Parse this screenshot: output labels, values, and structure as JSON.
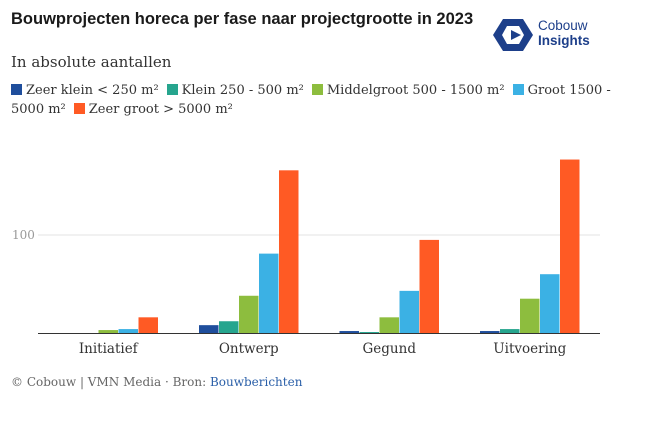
{
  "header": {
    "title": "Bouwprojecten horeca per fase naar projectgrootte in 2023",
    "subtitle": "In absolute aantallen"
  },
  "logo": {
    "line1": "Cobouw",
    "line2": "Insights",
    "color": "#1d3f8a"
  },
  "footer": {
    "credit": "© Cobouw | VMN Media · Bron: ",
    "source": "Bouwberichten"
  },
  "chart_data": {
    "type": "bar",
    "title": "Bouwprojecten horeca per fase naar projectgrootte in 2023",
    "subtitle": "In absolute aantallen",
    "categories": [
      "Initiatief",
      "Ontwerp",
      "Gegund",
      "Uitvoering"
    ],
    "series": [
      {
        "name": "Zeer klein < 250 m²",
        "color": "#1f4e9c",
        "values": [
          0,
          8,
          2,
          2
        ]
      },
      {
        "name": "Klein 250 - 500 m²",
        "color": "#26a58e",
        "values": [
          0,
          12,
          1,
          4
        ]
      },
      {
        "name": "Middelgroot 500 - 1500 m²",
        "color": "#8dbd3e",
        "values": [
          3,
          38,
          16,
          35
        ]
      },
      {
        "name": "Groot 1500 - 5000 m²",
        "color": "#3bb1e4",
        "values": [
          4,
          81,
          43,
          60
        ]
      },
      {
        "name": "Zeer groot > 5000 m²",
        "color": "#ff5a24",
        "values": [
          16,
          166,
          95,
          177
        ]
      }
    ],
    "yticks": [
      100
    ],
    "ylim": [
      0,
      190
    ],
    "grid": true,
    "legend_position": "top"
  }
}
